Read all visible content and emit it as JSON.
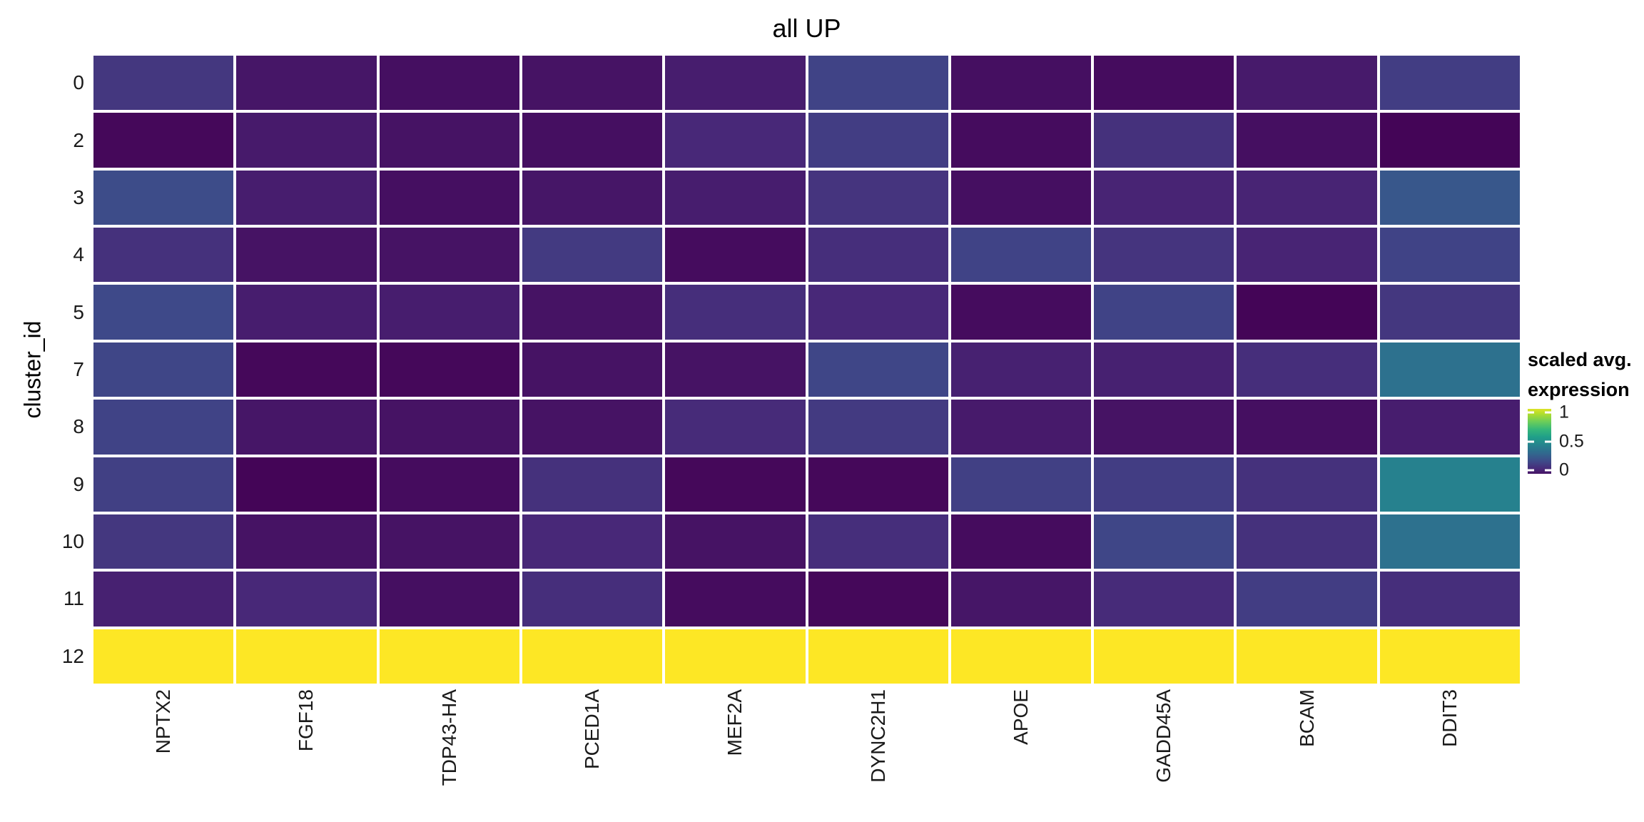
{
  "title": "all UP",
  "y_axis": {
    "title": "cluster_id",
    "labels": [
      "0",
      "2",
      "3",
      "4",
      "5",
      "7",
      "8",
      "9",
      "10",
      "11",
      "12"
    ]
  },
  "x_axis": {
    "labels": [
      "NPTX2",
      "FGF18",
      "TDP43-HA",
      "PCED1A",
      "MEF2A",
      "DYNC2H1",
      "APOE",
      "GADD45A",
      "BCAM",
      "DDIT3"
    ]
  },
  "legend": {
    "title_line1": "scaled avg.",
    "title_line2": "expression",
    "tick_labels": [
      "1",
      "0.5",
      "0"
    ],
    "tick_positions_pct": [
      5,
      50,
      95
    ]
  },
  "colors": {
    "background": "#ffffff",
    "cell_gap": "#ffffff",
    "tick_text": "#1a1a1a",
    "title_text": "#000000",
    "viridis_stops": [
      "#440154",
      "#482878",
      "#3e4a89",
      "#31688e",
      "#26828e",
      "#1f9e89",
      "#35b779",
      "#6ece58",
      "#b5de2b",
      "#fde725"
    ]
  },
  "chart_data": {
    "type": "heatmap",
    "title": "all UP",
    "xlabel": "",
    "ylabel": "cluster_id",
    "columns": [
      "NPTX2",
      "FGF18",
      "TDP43-HA",
      "PCED1A",
      "MEF2A",
      "DYNC2H1",
      "APOE",
      "GADD45A",
      "BCAM",
      "DDIT3"
    ],
    "rows": [
      "0",
      "2",
      "3",
      "4",
      "5",
      "7",
      "8",
      "9",
      "10",
      "11",
      "12"
    ],
    "values": [
      [
        0.16,
        0.06,
        0.04,
        0.05,
        0.08,
        0.2,
        0.04,
        0.03,
        0.07,
        0.18
      ],
      [
        0.02,
        0.07,
        0.05,
        0.04,
        0.11,
        0.18,
        0.03,
        0.14,
        0.04,
        0.01
      ],
      [
        0.23,
        0.08,
        0.04,
        0.06,
        0.08,
        0.15,
        0.04,
        0.1,
        0.1,
        0.27
      ],
      [
        0.14,
        0.05,
        0.05,
        0.17,
        0.03,
        0.13,
        0.2,
        0.15,
        0.1,
        0.2
      ],
      [
        0.22,
        0.08,
        0.08,
        0.05,
        0.13,
        0.11,
        0.03,
        0.2,
        0.01,
        0.16
      ],
      [
        0.21,
        0.02,
        0.02,
        0.05,
        0.05,
        0.21,
        0.09,
        0.09,
        0.13,
        0.37
      ],
      [
        0.2,
        0.06,
        0.05,
        0.05,
        0.12,
        0.17,
        0.07,
        0.05,
        0.04,
        0.08
      ],
      [
        0.19,
        0.01,
        0.03,
        0.14,
        0.02,
        0.02,
        0.19,
        0.18,
        0.14,
        0.44
      ],
      [
        0.16,
        0.05,
        0.05,
        0.11,
        0.05,
        0.13,
        0.03,
        0.21,
        0.14,
        0.37
      ],
      [
        0.09,
        0.11,
        0.04,
        0.13,
        0.03,
        0.02,
        0.06,
        0.12,
        0.18,
        0.13
      ],
      [
        1.0,
        1.0,
        1.0,
        1.0,
        1.0,
        1.0,
        1.0,
        1.0,
        1.0,
        1.0
      ]
    ],
    "color_scale": {
      "label": "scaled avg. expression",
      "palette": "viridis",
      "domain": [
        0,
        1
      ],
      "legend_ticks": [
        1,
        0.5,
        0
      ]
    },
    "legend_position": "right",
    "grid": false
  }
}
